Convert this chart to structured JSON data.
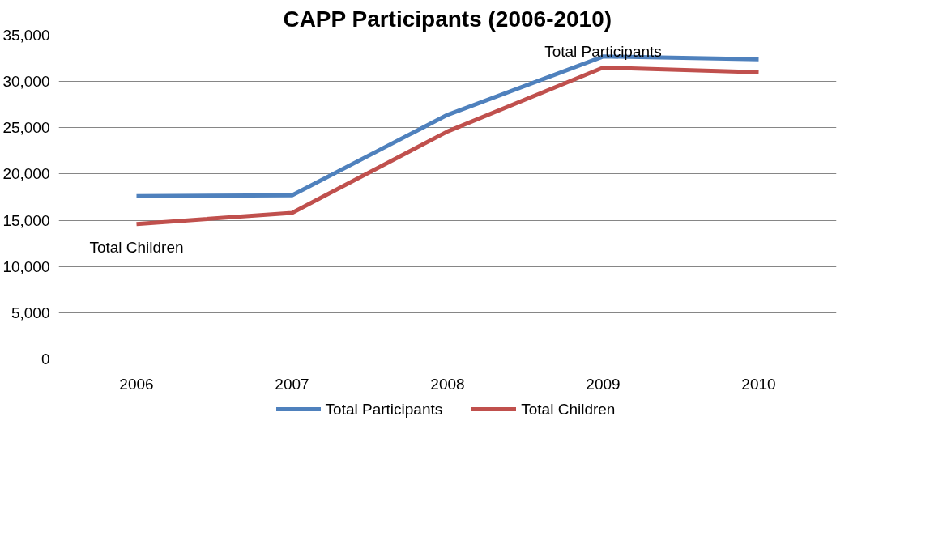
{
  "chart_data": {
    "type": "line",
    "title": "CAPP Participants (2006-2010)",
    "categories": [
      "2006",
      "2007",
      "2008",
      "2009",
      "2010"
    ],
    "series": [
      {
        "name": "Total Participants",
        "color": "#4f81bd",
        "values": [
          17600,
          17700,
          26400,
          32700,
          32400
        ]
      },
      {
        "name": "Total Children",
        "color": "#c0504d",
        "values": [
          14600,
          15800,
          24600,
          31500,
          31000
        ]
      }
    ],
    "ylim": [
      0,
      35000
    ],
    "yticks": [
      {
        "value": 0,
        "label": "0"
      },
      {
        "value": 5000,
        "label": "5,000"
      },
      {
        "value": 10000,
        "label": "10,000"
      },
      {
        "value": 15000,
        "label": "15,000"
      },
      {
        "value": 20000,
        "label": "20,000"
      },
      {
        "value": 25000,
        "label": "25,000"
      },
      {
        "value": 30000,
        "label": "30,000"
      },
      {
        "value": 35000,
        "label": "35,000"
      }
    ],
    "grid": "y",
    "legend": "bottom",
    "marker": "none",
    "line_style": "solid",
    "annotations": [
      "Total Participants",
      "Total Children"
    ]
  }
}
